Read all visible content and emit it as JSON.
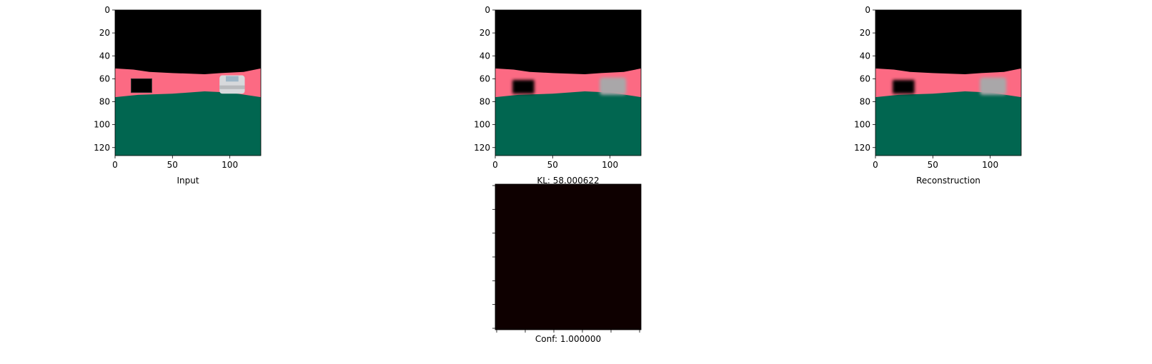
{
  "chart_data": [
    {
      "type": "image",
      "id": "input",
      "xlabel": "Input",
      "xlim": [
        0,
        127
      ],
      "ylim": [
        127,
        0
      ],
      "x_ticks": [
        0,
        50,
        100
      ],
      "y_ticks": [
        0,
        20,
        40,
        60,
        80,
        100,
        120
      ],
      "x_tick_labels": [
        "0",
        "50",
        "100"
      ],
      "y_tick_labels": [
        "0",
        "20",
        "40",
        "60",
        "80",
        "100",
        "120"
      ],
      "image": {
        "sky_color": "#000000",
        "road_color": "#fc6a83",
        "ground_color": "#016650",
        "road_top_profile": [
          [
            0,
            51
          ],
          [
            16,
            52
          ],
          [
            30,
            54
          ],
          [
            50,
            55
          ],
          [
            78,
            56
          ],
          [
            92,
            55
          ],
          [
            112,
            54
          ],
          [
            127,
            51
          ]
        ],
        "ground_top_profile": [
          [
            0,
            76
          ],
          [
            20,
            74
          ],
          [
            50,
            73
          ],
          [
            78,
            71
          ],
          [
            100,
            72
          ],
          [
            127,
            76
          ]
        ],
        "objects": [
          {
            "kind": "box",
            "x": [
              14,
              32
            ],
            "y": [
              60,
              72
            ],
            "color": "#000000",
            "blur": false
          },
          {
            "kind": "car",
            "x": [
              91,
              113
            ],
            "y": [
              57,
              73
            ],
            "color": "#d7d9dc",
            "blur": false
          }
        ]
      }
    },
    {
      "type": "image",
      "id": "prediction",
      "xlabel": "KL: 58.000622",
      "xlim": [
        0,
        127
      ],
      "ylim": [
        127,
        0
      ],
      "x_ticks": [
        0,
        50,
        100
      ],
      "y_ticks": [
        0,
        20,
        40,
        60,
        80,
        100,
        120
      ],
      "x_tick_labels": [
        "0",
        "50",
        "100"
      ],
      "y_tick_labels": [
        "0",
        "20",
        "40",
        "60",
        "80",
        "100",
        "120"
      ],
      "image": {
        "sky_color": "#000000",
        "road_color": "#fc6a83",
        "ground_color": "#016650",
        "road_top_profile": [
          [
            0,
            51
          ],
          [
            16,
            52
          ],
          [
            30,
            54
          ],
          [
            50,
            55
          ],
          [
            78,
            56
          ],
          [
            92,
            55
          ],
          [
            112,
            54
          ],
          [
            127,
            51
          ]
        ],
        "ground_top_profile": [
          [
            0,
            76
          ],
          [
            20,
            74
          ],
          [
            50,
            73
          ],
          [
            78,
            71
          ],
          [
            100,
            72
          ],
          [
            127,
            76
          ]
        ],
        "objects": [
          {
            "kind": "box",
            "x": [
              15,
              34
            ],
            "y": [
              61,
              73
            ],
            "color": "#000000",
            "blur": true
          },
          {
            "kind": "car",
            "x": [
              91,
              114
            ],
            "y": [
              59,
              74
            ],
            "color": "#a9a7a9",
            "blur": true
          }
        ]
      }
    },
    {
      "type": "image",
      "id": "reconstruction",
      "xlabel": "Reconstruction",
      "xlim": [
        0,
        127
      ],
      "ylim": [
        127,
        0
      ],
      "x_ticks": [
        0,
        50,
        100
      ],
      "y_ticks": [
        0,
        20,
        40,
        60,
        80,
        100,
        120
      ],
      "x_tick_labels": [
        "0",
        "50",
        "100"
      ],
      "y_tick_labels": [
        "0",
        "20",
        "40",
        "60",
        "80",
        "100",
        "120"
      ],
      "image": {
        "sky_color": "#000000",
        "road_color": "#fc6a83",
        "ground_color": "#016650",
        "road_top_profile": [
          [
            0,
            51
          ],
          [
            16,
            52
          ],
          [
            30,
            54
          ],
          [
            50,
            55
          ],
          [
            78,
            56
          ],
          [
            92,
            55
          ],
          [
            112,
            54
          ],
          [
            127,
            51
          ]
        ],
        "ground_top_profile": [
          [
            0,
            76
          ],
          [
            20,
            74
          ],
          [
            50,
            73
          ],
          [
            78,
            71
          ],
          [
            100,
            72
          ],
          [
            127,
            76
          ]
        ],
        "objects": [
          {
            "kind": "box",
            "x": [
              15,
              34
            ],
            "y": [
              61,
              73
            ],
            "color": "#000000",
            "blur": true
          },
          {
            "kind": "car",
            "x": [
              91,
              114
            ],
            "y": [
              59,
              74
            ],
            "color": "#a9a7a9",
            "blur": true
          }
        ]
      }
    },
    {
      "type": "heatmap",
      "id": "confidence",
      "xlabel": "Conf: 1.000000",
      "fill_color": "#0e0000",
      "tick_labels_visible": false,
      "x_tick_count": 6,
      "y_tick_count": 7
    }
  ]
}
